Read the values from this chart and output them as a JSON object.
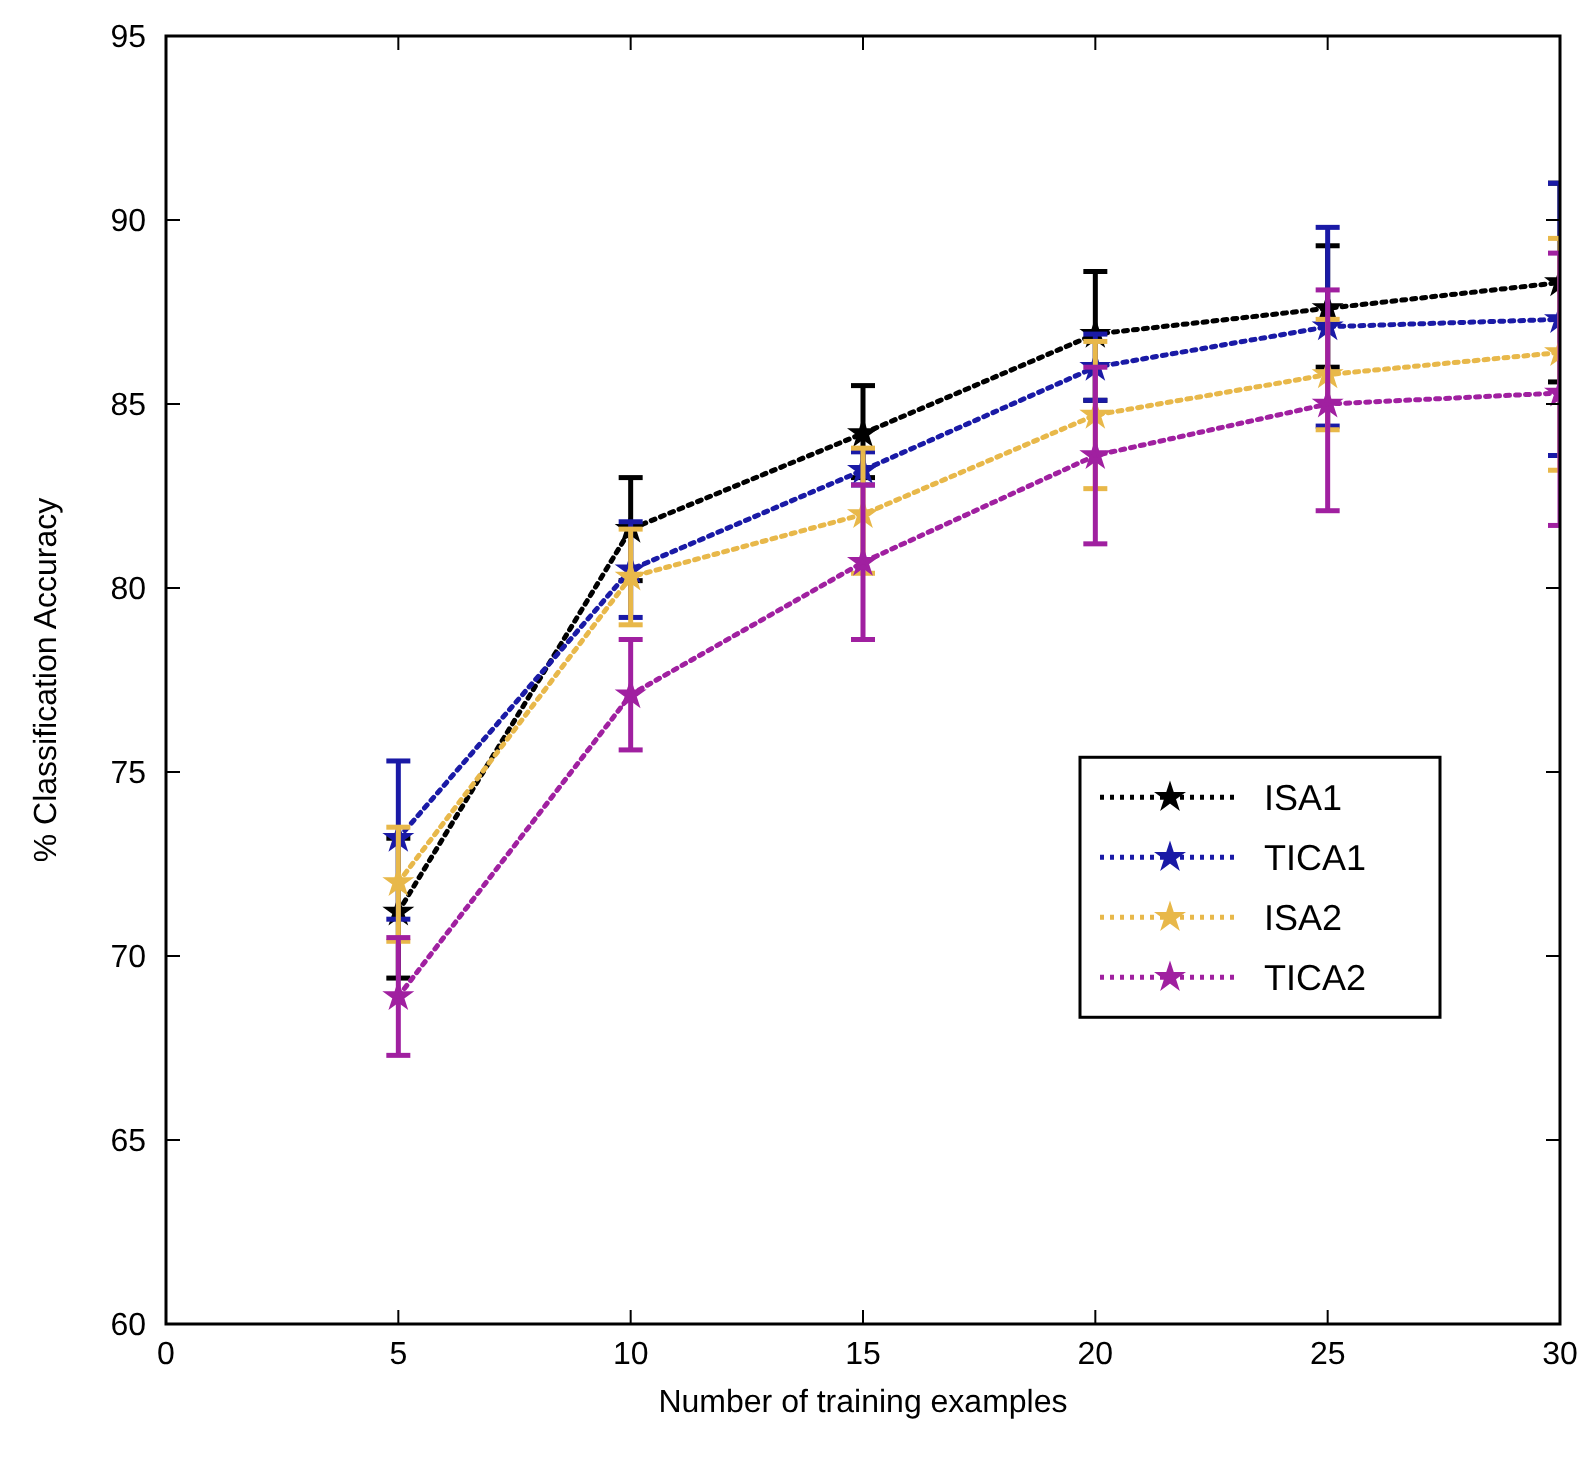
{
  "chart_data": {
    "type": "line",
    "xlabel": "Number of training examples",
    "ylabel": "% Classification Accuracy",
    "x": [
      5,
      10,
      15,
      20,
      25,
      30
    ],
    "xlim": [
      0,
      30
    ],
    "xticks": [
      0,
      5,
      10,
      15,
      20,
      25,
      30
    ],
    "ylim": [
      60,
      95
    ],
    "yticks": [
      60,
      65,
      70,
      75,
      80,
      85,
      90,
      95
    ],
    "grid": false,
    "legend": "right",
    "marker": "star",
    "line_style": "dotted",
    "series": [
      {
        "name": "ISA1",
        "color": "#000000",
        "values": [
          71.2,
          81.6,
          84.2,
          86.9,
          87.6,
          88.3
        ],
        "errors": [
          [
            69.4,
            73.2
          ],
          [
            80.2,
            83.0
          ],
          [
            83.0,
            85.5
          ],
          [
            85.1,
            88.6
          ],
          [
            86.0,
            89.3
          ],
          [
            85.6,
            91.0
          ]
        ]
      },
      {
        "name": "TICA1",
        "color": "#1a1aa6",
        "values": [
          73.2,
          80.5,
          83.2,
          86.0,
          87.1,
          87.3
        ],
        "errors": [
          [
            71.0,
            75.3
          ],
          [
            79.2,
            81.8
          ],
          [
            82.8,
            83.7
          ],
          [
            85.1,
            86.9
          ],
          [
            84.4,
            89.8
          ],
          [
            83.6,
            91.0
          ]
        ]
      },
      {
        "name": "ISA2",
        "color": "#e8b84a",
        "values": [
          72.0,
          80.3,
          82.0,
          84.7,
          85.8,
          86.4
        ],
        "errors": [
          [
            70.4,
            73.5
          ],
          [
            79.0,
            81.6
          ],
          [
            80.4,
            83.8
          ],
          [
            82.7,
            86.7
          ],
          [
            84.3,
            87.3
          ],
          [
            83.2,
            89.5
          ]
        ]
      },
      {
        "name": "TICA2",
        "color": "#a020a0",
        "values": [
          68.9,
          77.1,
          80.7,
          83.6,
          85.0,
          85.3
        ],
        "errors": [
          [
            67.3,
            70.5
          ],
          [
            75.6,
            78.6
          ],
          [
            78.6,
            82.8
          ],
          [
            81.2,
            86.0
          ],
          [
            82.1,
            88.1
          ],
          [
            81.7,
            89.1
          ]
        ]
      }
    ]
  }
}
